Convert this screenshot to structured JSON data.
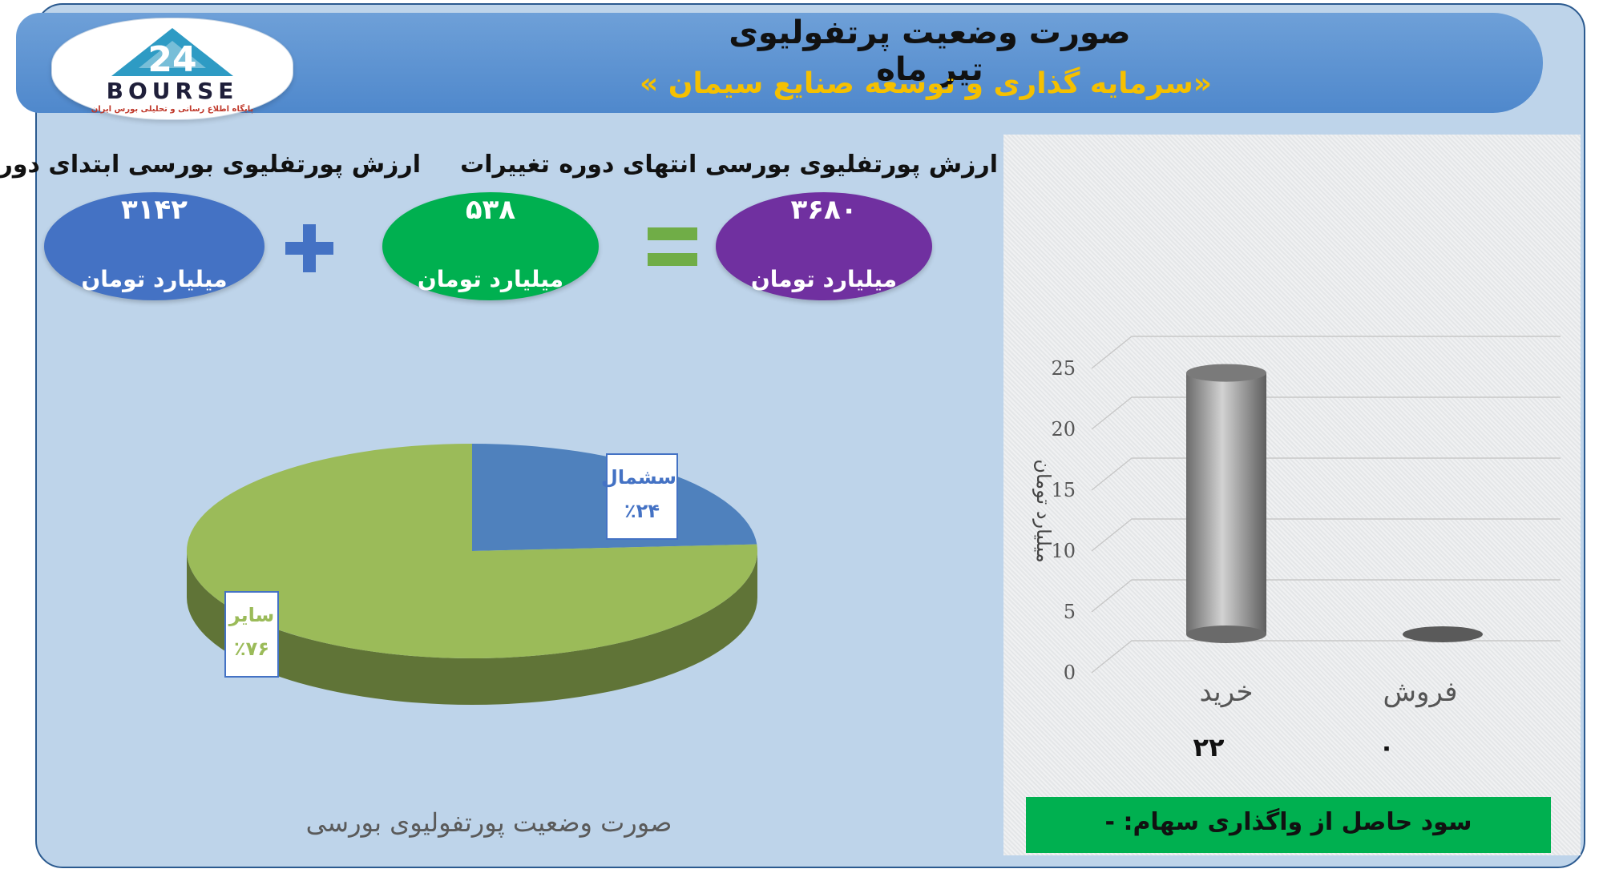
{
  "header": {
    "title": "صورت وضعیت پرتفولیوی تیر ماه",
    "subtitle": "«سرمایه گذاری و توسعه صنایع سیمان »",
    "logo_text": "BOURSE",
    "logo_number": "24",
    "logo_caption": "پایگاه اطلاع رسانی و تحلیلی بورس ایران"
  },
  "summary": {
    "start_label": "ارزش پورتفلیوی بورسی ابتدای دوره",
    "start_value": "۳۱۴۲",
    "change_label": "تغییرات",
    "change_value": "۵۳۸",
    "end_label": "ارزش پورتفلیوی بورسی انتهای دوره",
    "end_value": "۳۶۸۰",
    "unit": "میلیارد تومان",
    "colors": {
      "start": "#4472c4",
      "change": "#00b050",
      "end": "#7030a0",
      "plus": "#4472c4",
      "equals": "#70ad47"
    }
  },
  "pie_title": "صورت وضعیت پورتفولیوی بورسی",
  "bar_value_labels": [
    "۲۲",
    "۰"
  ],
  "profit_text": "سود حاصل از واگذاری سهام: -",
  "chart_data": [
    {
      "type": "pie",
      "title": "صورت وضعیت پورتفولیوی بورسی",
      "slices": [
        {
          "label": "سشمال",
          "value": 24,
          "display": "٪۲۴",
          "color": "#4f81bd"
        },
        {
          "label": "سایر",
          "value": 76,
          "display": "٪۷۶",
          "color": "#9bbb59"
        }
      ]
    },
    {
      "type": "bar",
      "categories": [
        "خرید",
        "فروش"
      ],
      "values": [
        22,
        0
      ],
      "ylabel": "میلیارد تومان",
      "ylim": [
        0,
        25
      ],
      "yticks": [
        0,
        5,
        10,
        15,
        20,
        25
      ],
      "grid": true,
      "color": "#8c8c8c"
    }
  ]
}
